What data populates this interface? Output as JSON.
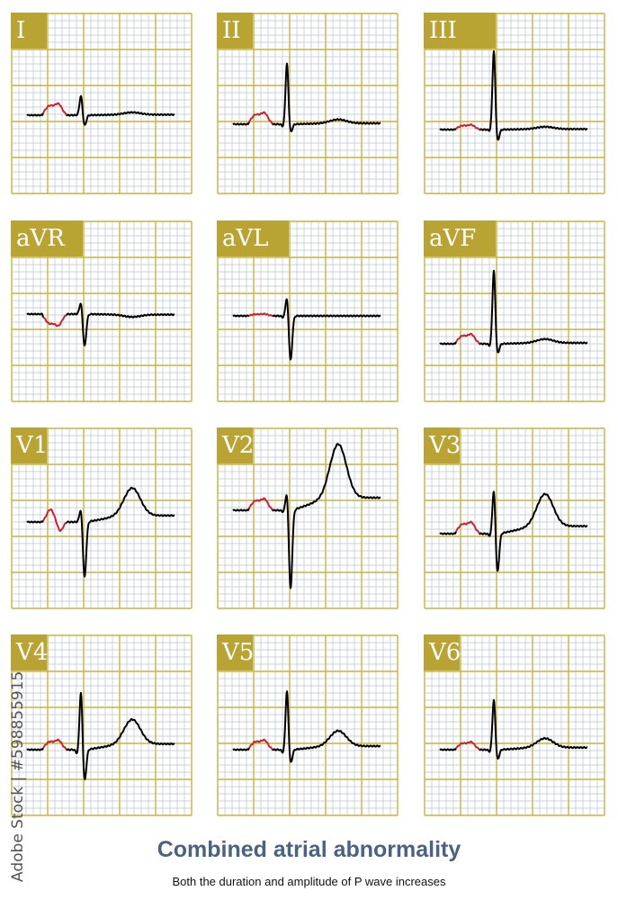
{
  "leads": [
    {
      "label": "I"
    },
    {
      "label": "II"
    },
    {
      "label": "III"
    },
    {
      "label": "aVR"
    },
    {
      "label": "aVL"
    },
    {
      "label": "aVF"
    },
    {
      "label": "V1"
    },
    {
      "label": "V2"
    },
    {
      "label": "V3"
    },
    {
      "label": "V4"
    },
    {
      "label": "V5"
    },
    {
      "label": "V6"
    }
  ],
  "title": "Combined atrial abnormality",
  "subtitle": "Both the duration and amplitude of P wave increases",
  "watermark": "Adobe Stock | #598855915",
  "colors": {
    "grid_major": "#c9b440",
    "grid_minor": "#b8c4d4",
    "label_bg": "#b9a333",
    "p_wave": "#d0202e",
    "trace": "#000000",
    "title": "#4a6283"
  }
}
